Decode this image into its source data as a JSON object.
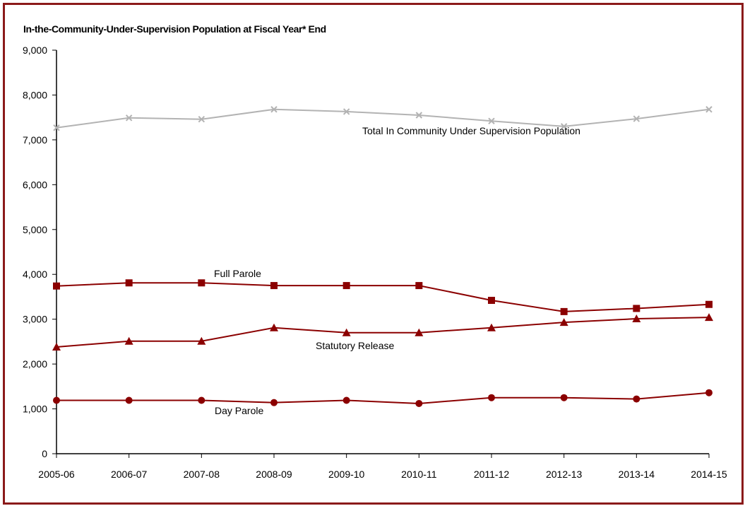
{
  "chart_data": {
    "type": "line",
    "title": "In-the-Community-Under-Supervision Population at Fiscal Year* End",
    "xlabel": "",
    "ylabel": "",
    "categories": [
      "2005-06",
      "2006-07",
      "2007-08",
      "2008-09",
      "2009-10",
      "2010-11",
      "2011-12",
      "2012-13",
      "2013-14",
      "2014-15"
    ],
    "ylim": [
      0,
      9000
    ],
    "yticks": [
      "0",
      "1,000",
      "2,000",
      "3,000",
      "4,000",
      "5,000",
      "6,000",
      "7,000",
      "8,000",
      "9,000"
    ],
    "grid": false,
    "legend": "inline labels",
    "series": [
      {
        "name": "Total In Community Under Supervision Population",
        "color": "#b3b3b3",
        "marker": "x",
        "values": [
          7270,
          7490,
          7460,
          7680,
          7630,
          7550,
          7420,
          7300,
          7470,
          7680
        ]
      },
      {
        "name": "Full Parole",
        "color": "#8b0000",
        "marker": "square",
        "values": [
          3740,
          3810,
          3810,
          3750,
          3750,
          3750,
          3420,
          3170,
          3240,
          3330
        ]
      },
      {
        "name": "Statutory Release",
        "color": "#8b0000",
        "marker": "triangle",
        "values": [
          2380,
          2510,
          2510,
          2810,
          2700,
          2700,
          2810,
          2930,
          3010,
          3040
        ]
      },
      {
        "name": "Day Parole",
        "color": "#8b0000",
        "marker": "circle",
        "values": [
          1190,
          1190,
          1190,
          1140,
          1190,
          1120,
          1250,
          1250,
          1220,
          1360
        ]
      }
    ]
  }
}
